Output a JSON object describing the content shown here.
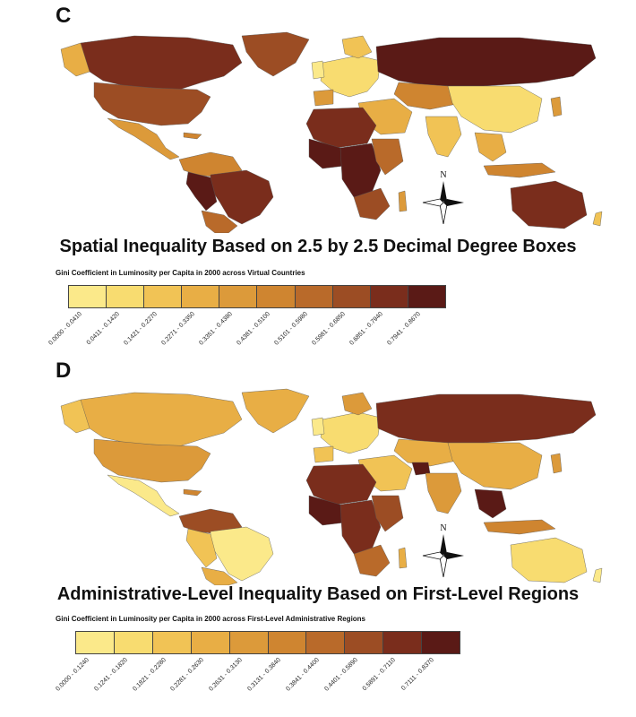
{
  "panels": [
    {
      "letter": "C",
      "subtitle": "Spatial Inequality Based on 2.5 by 2.5 Decimal Degree Boxes",
      "legend_title": "Gini Coefficient in Luminosity per Capita in 2000 across Virtual Countries",
      "legend_classes": [
        {
          "range": "0.0000 - 0.0410",
          "color": "#fbe98a"
        },
        {
          "range": "0.0411 - 0.1420",
          "color": "#f8dc70"
        },
        {
          "range": "0.1421 - 0.2270",
          "color": "#f1c355"
        },
        {
          "range": "0.2271 - 0.3350",
          "color": "#e8ae45"
        },
        {
          "range": "0.3351 - 0.4380",
          "color": "#dc9a3a"
        },
        {
          "range": "0.4381 - 0.5100",
          "color": "#cf8530"
        },
        {
          "range": "0.5101 - 0.5980",
          "color": "#b96a2a"
        },
        {
          "range": "0.5981 - 0.6850",
          "color": "#9c4d24"
        },
        {
          "range": "0.6851 - 0.7940",
          "color": "#7a2d1c"
        },
        {
          "range": "0.7941 - 0.8670",
          "color": "#5a1a16"
        }
      ],
      "compass_label": "N"
    },
    {
      "letter": "D",
      "subtitle": "Administrative-Level Inequality Based on First-Level Regions",
      "legend_title": "Gini Coefficient in Luminosity per Capita in 2000 across First-Level Administrative Regions",
      "legend_classes": [
        {
          "range": "0.0000 - 0.1240",
          "color": "#fbe98a"
        },
        {
          "range": "0.1241 - 0.1820",
          "color": "#f8dc70"
        },
        {
          "range": "0.1821 - 0.2280",
          "color": "#f1c355"
        },
        {
          "range": "0.2281 - 0.2630",
          "color": "#e8ae45"
        },
        {
          "range": "0.2631 - 0.3130",
          "color": "#dc9a3a"
        },
        {
          "range": "0.3131 - 0.3840",
          "color": "#cf8530"
        },
        {
          "range": "0.3841 - 0.4400",
          "color": "#b96a2a"
        },
        {
          "range": "0.4401 - 0.5890",
          "color": "#9c4d24"
        },
        {
          "range": "0.5891 - 0.7110",
          "color": "#7a2d1c"
        },
        {
          "range": "0.7111 - 0.8370",
          "color": "#5a1a16"
        }
      ],
      "compass_label": "N"
    }
  ]
}
